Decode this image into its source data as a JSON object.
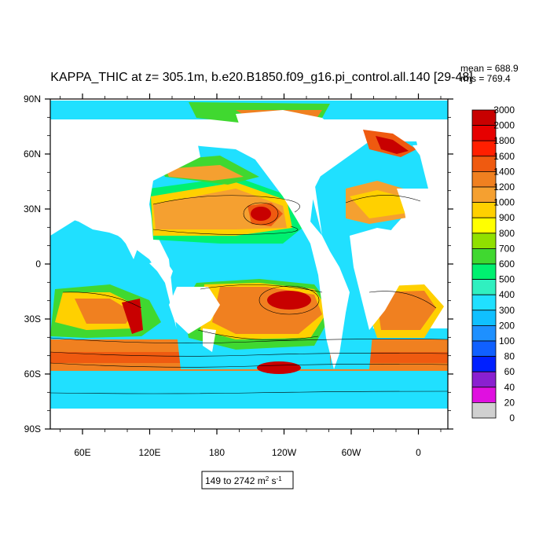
{
  "header": {
    "title": "KAPPA_THIC at z= 305.1m, b.e20.B1850.f09_g16.pi_control.all.140 [29-48]",
    "mean": "mean = 688.9",
    "rms": "rms = 769.4"
  },
  "axes": {
    "lat_ticks": [
      "90N",
      "60N",
      "30N",
      "0",
      "30S",
      "60S",
      "90S"
    ],
    "lon_ticks": [
      "60E",
      "120E",
      "180",
      "120W",
      "60W",
      "0"
    ]
  },
  "range_label": {
    "prefix": "149 to 2742 m",
    "exp1": "2",
    "middle": " s",
    "exp2": "-1"
  },
  "colorbar": {
    "levels": [
      "3000",
      "2000",
      "1800",
      "1600",
      "1400",
      "1200",
      "1000",
      "900",
      "800",
      "700",
      "600",
      "500",
      "400",
      "300",
      "200",
      "100",
      "80",
      "60",
      "40",
      "20",
      "0"
    ],
    "colors": [
      "#c80000",
      "#e60000",
      "#ff1f00",
      "#ef5a10",
      "#f08020",
      "#f5a030",
      "#ffd000",
      "#ffff00",
      "#90e000",
      "#40d830",
      "#00f070",
      "#30f0c0",
      "#20e0ff",
      "#10c0ff",
      "#1e90ff",
      "#1060ff",
      "#0020ff",
      "#8a20d0",
      "#e010e0",
      "#d0d0d0",
      "#707070"
    ]
  }
}
